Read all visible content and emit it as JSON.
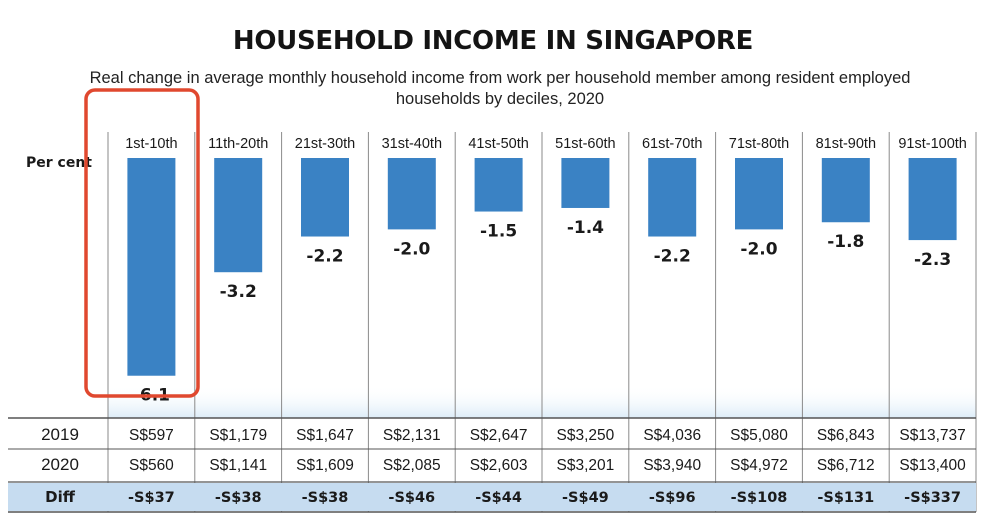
{
  "chart_data": {
    "type": "bar",
    "title": "HOUSEHOLD INCOME IN SINGAPORE",
    "subtitle": "Real change in average monthly household income from work per household member among resident employed households by deciles, 2020",
    "ylabel": "Per cent",
    "categories": [
      "1st-10th",
      "11th-20th",
      "21st-30th",
      "31st-40th",
      "41st-50th",
      "51st-60th",
      "61st-70th",
      "71st-80th",
      "81st-90th",
      "91st-100th"
    ],
    "values": [
      -6.1,
      -3.2,
      -2.2,
      -2.0,
      -1.5,
      -1.4,
      -2.2,
      -2.0,
      -1.8,
      -2.3
    ],
    "value_labels": [
      "-6.1",
      "-3.2",
      "-2.2",
      "-2.0",
      "-1.5",
      "-1.4",
      "-2.2",
      "-2.0",
      "-1.8",
      "-2.3"
    ],
    "ylim": [
      -6.5,
      0
    ],
    "bar_color": "#3a82c4",
    "highlight_color": "#e0482f",
    "highlight_category": "1st-10th"
  },
  "table": {
    "rows": [
      {
        "label": "2019",
        "cells": [
          "S$597",
          "S$1,179",
          "S$1,647",
          "S$2,131",
          "S$2,647",
          "S$3,250",
          "S$4,036",
          "S$5,080",
          "S$6,843",
          "S$13,737"
        ]
      },
      {
        "label": "2020",
        "cells": [
          "S$560",
          "S$1,141",
          "S$1,609",
          "S$2,085",
          "S$2,603",
          "S$3,201",
          "S$3,940",
          "S$4,972",
          "S$6,712",
          "S$13,400"
        ]
      }
    ],
    "diff": {
      "label": "Diff",
      "cells": [
        "-S$37",
        "-S$38",
        "-S$38",
        "-S$46",
        "-S$44",
        "-S$49",
        "-S$96",
        "-S$108",
        "-S$131",
        "-S$337"
      ]
    },
    "diff_bg": "#c6dcf0"
  }
}
